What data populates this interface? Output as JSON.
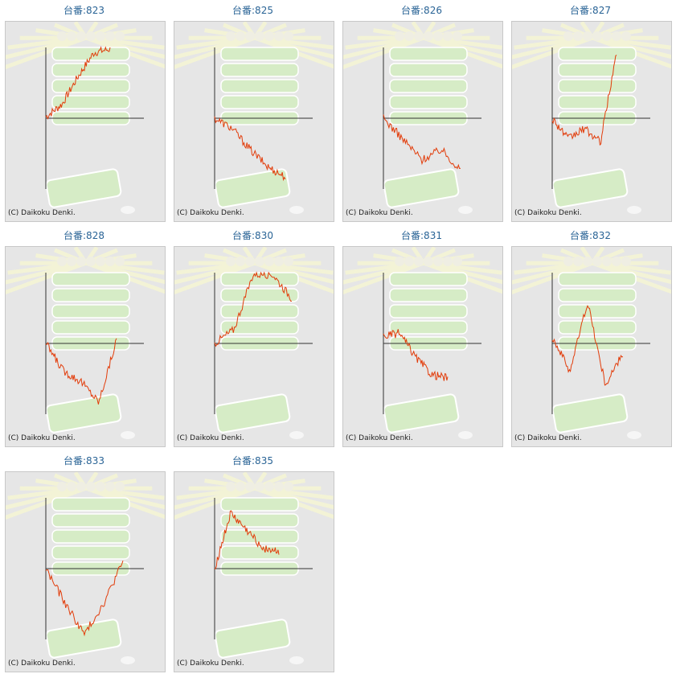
{
  "copyright": "(C) Daikoku Denki.",
  "colors": {
    "line": "#e23c0a",
    "axis": "#333333",
    "title": "#2a6496",
    "panel_bg": "#e6e6e6"
  },
  "chart_data": [
    {
      "type": "line",
      "title": "台番:823",
      "trend": [
        0.02,
        0.2,
        0.6,
        0.95,
        1.0
      ]
    },
    {
      "type": "line",
      "title": "台番:825",
      "trend": [
        0.0,
        -0.15,
        -0.45,
        -0.7,
        -0.85
      ]
    },
    {
      "type": "line",
      "title": "台番:826",
      "trend": [
        0.0,
        -0.3,
        -0.6,
        -0.45,
        -0.75
      ]
    },
    {
      "type": "line",
      "title": "台番:827",
      "trend": [
        0.0,
        -0.3,
        -0.15,
        -0.35,
        0.95
      ]
    },
    {
      "type": "line",
      "title": "台番:828",
      "trend": [
        0.0,
        -0.4,
        -0.55,
        -0.85,
        0.05
      ]
    },
    {
      "type": "line",
      "title": "台番:830",
      "trend": [
        0.0,
        0.2,
        1.0,
        1.0,
        0.65
      ]
    },
    {
      "type": "line",
      "title": "台番:831",
      "trend": [
        0.1,
        0.15,
        -0.2,
        -0.45,
        -0.5
      ]
    },
    {
      "type": "line",
      "title": "台番:832",
      "trend": [
        0.1,
        -0.4,
        0.6,
        -0.6,
        -0.15
      ]
    },
    {
      "type": "line",
      "title": "台番:833",
      "trend": [
        0.0,
        -0.5,
        -0.95,
        -0.5,
        0.1
      ]
    },
    {
      "type": "line",
      "title": "台番:835",
      "trend": [
        0.0,
        0.8,
        0.55,
        0.3,
        0.25
      ]
    }
  ]
}
